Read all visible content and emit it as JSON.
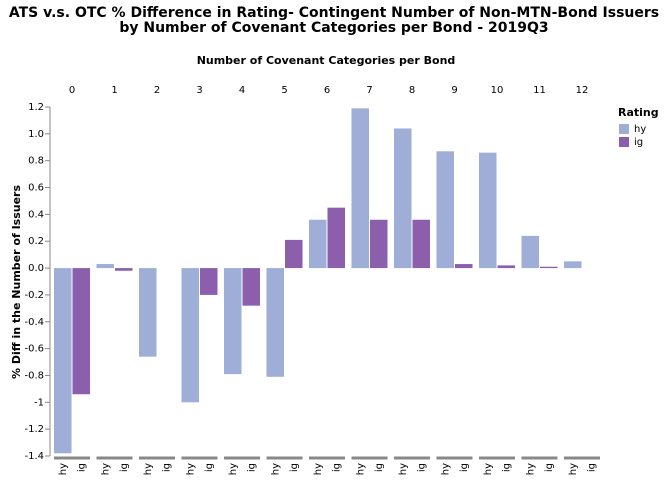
{
  "chart_data": {
    "type": "bar",
    "title": [
      "ATS v.s. OTC % Difference in Rating- Contingent Number of Non-MTN-Bond Issuers",
      "by Number of Covenant Categories per Bond - 2019Q3"
    ],
    "column_title": "Number of Covenant Categories per Bond",
    "categories": [
      "0",
      "1",
      "2",
      "3",
      "4",
      "5",
      "6",
      "7",
      "8",
      "9",
      "10",
      "11",
      "12"
    ],
    "y_label": "% Diff in the Number of Issuers",
    "legend_title": "Rating",
    "series": [
      {
        "name": "hy",
        "color": "#9eaed6",
        "values": [
          -1.38,
          0.03,
          -0.66,
          -1.0,
          -0.79,
          -0.81,
          0.36,
          1.19,
          1.04,
          0.87,
          0.86,
          0.24,
          0.05
        ]
      },
      {
        "name": "ig",
        "color": "#8c5fad",
        "values": [
          -0.94,
          -0.02,
          null,
          -0.2,
          -0.28,
          0.21,
          0.45,
          0.36,
          0.36,
          0.03,
          0.02,
          0.01,
          null
        ]
      }
    ],
    "ylim": [
      -1.4,
      1.2
    ],
    "yticks": [
      -1.4,
      -1.2,
      -1,
      -0.8,
      -0.6,
      -0.4,
      -0.2,
      {
        "value": 0,
        "label": "0.0"
      },
      0.2,
      0.4,
      0.6,
      0.8,
      {
        "value": 1,
        "label": "1.0"
      },
      1.2
    ]
  }
}
